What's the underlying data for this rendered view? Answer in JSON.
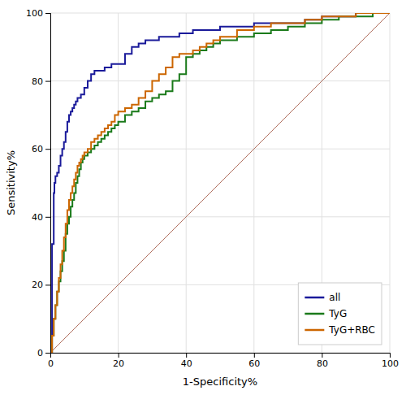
{
  "chart_data": {
    "type": "step",
    "xlabel": "1-Specificity%",
    "ylabel": "Sensitivity%",
    "xlim": [
      0,
      100
    ],
    "ylim": [
      0,
      100
    ],
    "xticks": [
      0,
      20,
      40,
      60,
      80,
      100
    ],
    "yticks": [
      0,
      20,
      40,
      60,
      80,
      100
    ],
    "grid": true,
    "legend": "lower right",
    "diagonal": {
      "x": [
        0,
        100
      ],
      "values": [
        0,
        100
      ],
      "color": "#b07060"
    },
    "series": [
      {
        "name": "all",
        "color": "#1a1a9a",
        "x": [
          0,
          0.5,
          1,
          1.2,
          1.5,
          2,
          2.5,
          3,
          3.5,
          4,
          4.5,
          5,
          5.5,
          6,
          6.5,
          7,
          7.5,
          8,
          9,
          10,
          11,
          12,
          13,
          14,
          15,
          16,
          17,
          18,
          19,
          20,
          22,
          24,
          26,
          28,
          30,
          32,
          34,
          36,
          38,
          40,
          42,
          44,
          46,
          48,
          50,
          55,
          60,
          65,
          70,
          75,
          80,
          85,
          90,
          95,
          100
        ],
        "values": [
          0,
          32,
          47,
          50,
          52,
          53,
          55,
          58,
          60,
          62,
          65,
          68,
          70,
          71,
          72,
          73,
          74,
          75,
          76,
          78,
          80,
          82,
          83,
          83,
          83,
          84,
          84,
          85,
          85,
          85,
          88,
          90,
          91,
          92,
          92,
          93,
          93,
          93,
          94,
          94,
          95,
          95,
          95,
          95,
          96,
          96,
          97,
          97,
          97,
          98,
          99,
          99,
          100,
          100,
          100
        ]
      },
      {
        "name": "TyG",
        "color": "#1a7a1a",
        "x": [
          0,
          0.5,
          1,
          1.5,
          2,
          2.5,
          3,
          3.5,
          4,
          4.5,
          5,
          5.5,
          6,
          6.5,
          7,
          7.5,
          8,
          8.5,
          9,
          9.5,
          10,
          11,
          12,
          13,
          14,
          15,
          16,
          17,
          18,
          19,
          20,
          22,
          24,
          26,
          28,
          30,
          32,
          34,
          36,
          38,
          40,
          42,
          44,
          46,
          48,
          50,
          55,
          60,
          65,
          70,
          75,
          80,
          85,
          90,
          95,
          100
        ],
        "values": [
          0,
          5,
          10,
          14,
          18,
          21,
          24,
          27,
          30,
          35,
          38,
          40,
          43,
          45,
          47,
          50,
          52,
          54,
          56,
          57,
          58,
          59,
          60,
          61,
          62,
          63,
          64,
          65,
          66,
          67,
          68,
          70,
          71,
          72,
          74,
          75,
          76,
          77,
          80,
          82,
          87,
          88,
          89,
          90,
          91,
          92,
          93,
          94,
          95,
          96,
          97,
          98,
          99,
          99,
          100,
          100
        ]
      },
      {
        "name": "TyG+RBC",
        "color": "#cc6600",
        "x": [
          0,
          0.5,
          1,
          1.5,
          2,
          2.5,
          3,
          3.5,
          4,
          4.5,
          5,
          5.5,
          6,
          6.5,
          7,
          7.5,
          8,
          8.5,
          9,
          9.5,
          10,
          11,
          12,
          13,
          14,
          15,
          16,
          17,
          18,
          19,
          20,
          22,
          24,
          26,
          28,
          30,
          32,
          34,
          36,
          38,
          40,
          42,
          44,
          46,
          48,
          50,
          55,
          60,
          65,
          70,
          75,
          80,
          85,
          90,
          95,
          100
        ],
        "values": [
          0,
          5,
          10,
          14,
          18,
          22,
          26,
          30,
          34,
          38,
          42,
          45,
          47,
          49,
          51,
          53,
          55,
          56,
          57,
          58,
          59,
          60,
          62,
          63,
          64,
          65,
          66,
          67,
          68,
          70,
          71,
          72,
          73,
          75,
          77,
          80,
          82,
          84,
          87,
          88,
          88,
          89,
          90,
          91,
          92,
          93,
          95,
          96,
          97,
          97,
          98,
          99,
          99,
          100,
          100,
          100
        ]
      }
    ]
  }
}
